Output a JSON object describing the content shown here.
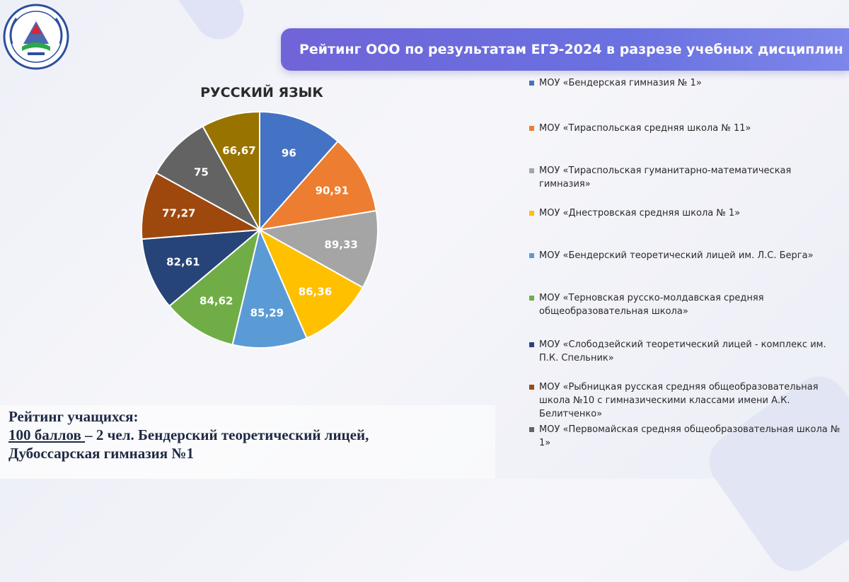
{
  "header": {
    "title": "Рейтинг ООО по результатам ЕГЭ-2024 в разрезе учебных дисциплин"
  },
  "logo": {
    "icon": "ministry-of-education-emblem-icon",
    "colors": [
      "#2c4f9e",
      "#d8263a",
      "#2aa84a"
    ]
  },
  "chart_data": {
    "type": "pie",
    "title": "РУССКИЙ ЯЗЫК",
    "legend_position": "right",
    "series": [
      {
        "name": "МОУ «Бендерская гимназия № 1»",
        "value": 96,
        "label": "96",
        "color": "#4472c4"
      },
      {
        "name": "МОУ «Тираспольская средняя школа № 11»",
        "value": 90.91,
        "label": "90,91",
        "color": "#ed7d31"
      },
      {
        "name": "МОУ «Тираспольская гуманитарно-математическая гимназия»",
        "value": 89.33,
        "label": "89,33",
        "color": "#a5a5a5"
      },
      {
        "name": "МОУ «Днестровская средняя школа № 1»",
        "value": 86.36,
        "label": "86,36",
        "color": "#ffc000"
      },
      {
        "name": "МОУ «Бендерский теоретический лицей им. Л.С. Берга»",
        "value": 85.29,
        "label": "85,29",
        "color": "#5b9bd5"
      },
      {
        "name": "МОУ «Терновская русско-молдавская средняя общеобразовательная школа»",
        "value": 84.62,
        "label": "84,62",
        "color": "#70ad47"
      },
      {
        "name": "МОУ «Слободзейский теоретический лицей - комплекс им. П.К. Спельник»",
        "value": 82.61,
        "label": "82,61",
        "color": "#264478"
      },
      {
        "name": "МОУ «Рыбницкая русская средняя общеобразовательная школа №10 с гимназическими классами имени А.К. Белитченко»",
        "value": 77.27,
        "label": "77,27",
        "color": "#9e480e"
      },
      {
        "name": "МОУ «Первомайская средняя общеобразовательная школа № 1»",
        "value": 75,
        "label": "75",
        "color": "#636363"
      },
      {
        "name": "",
        "value": 66.67,
        "label": "66,67",
        "color": "#997300"
      }
    ]
  },
  "bottom": {
    "line1": "Рейтинг учащихся:",
    "line2_underlined": "100 баллов ",
    "line2_rest": "– 2 чел. Бендерский теоретический лицей,",
    "line3": "Дубоссарская гимназия №1"
  }
}
